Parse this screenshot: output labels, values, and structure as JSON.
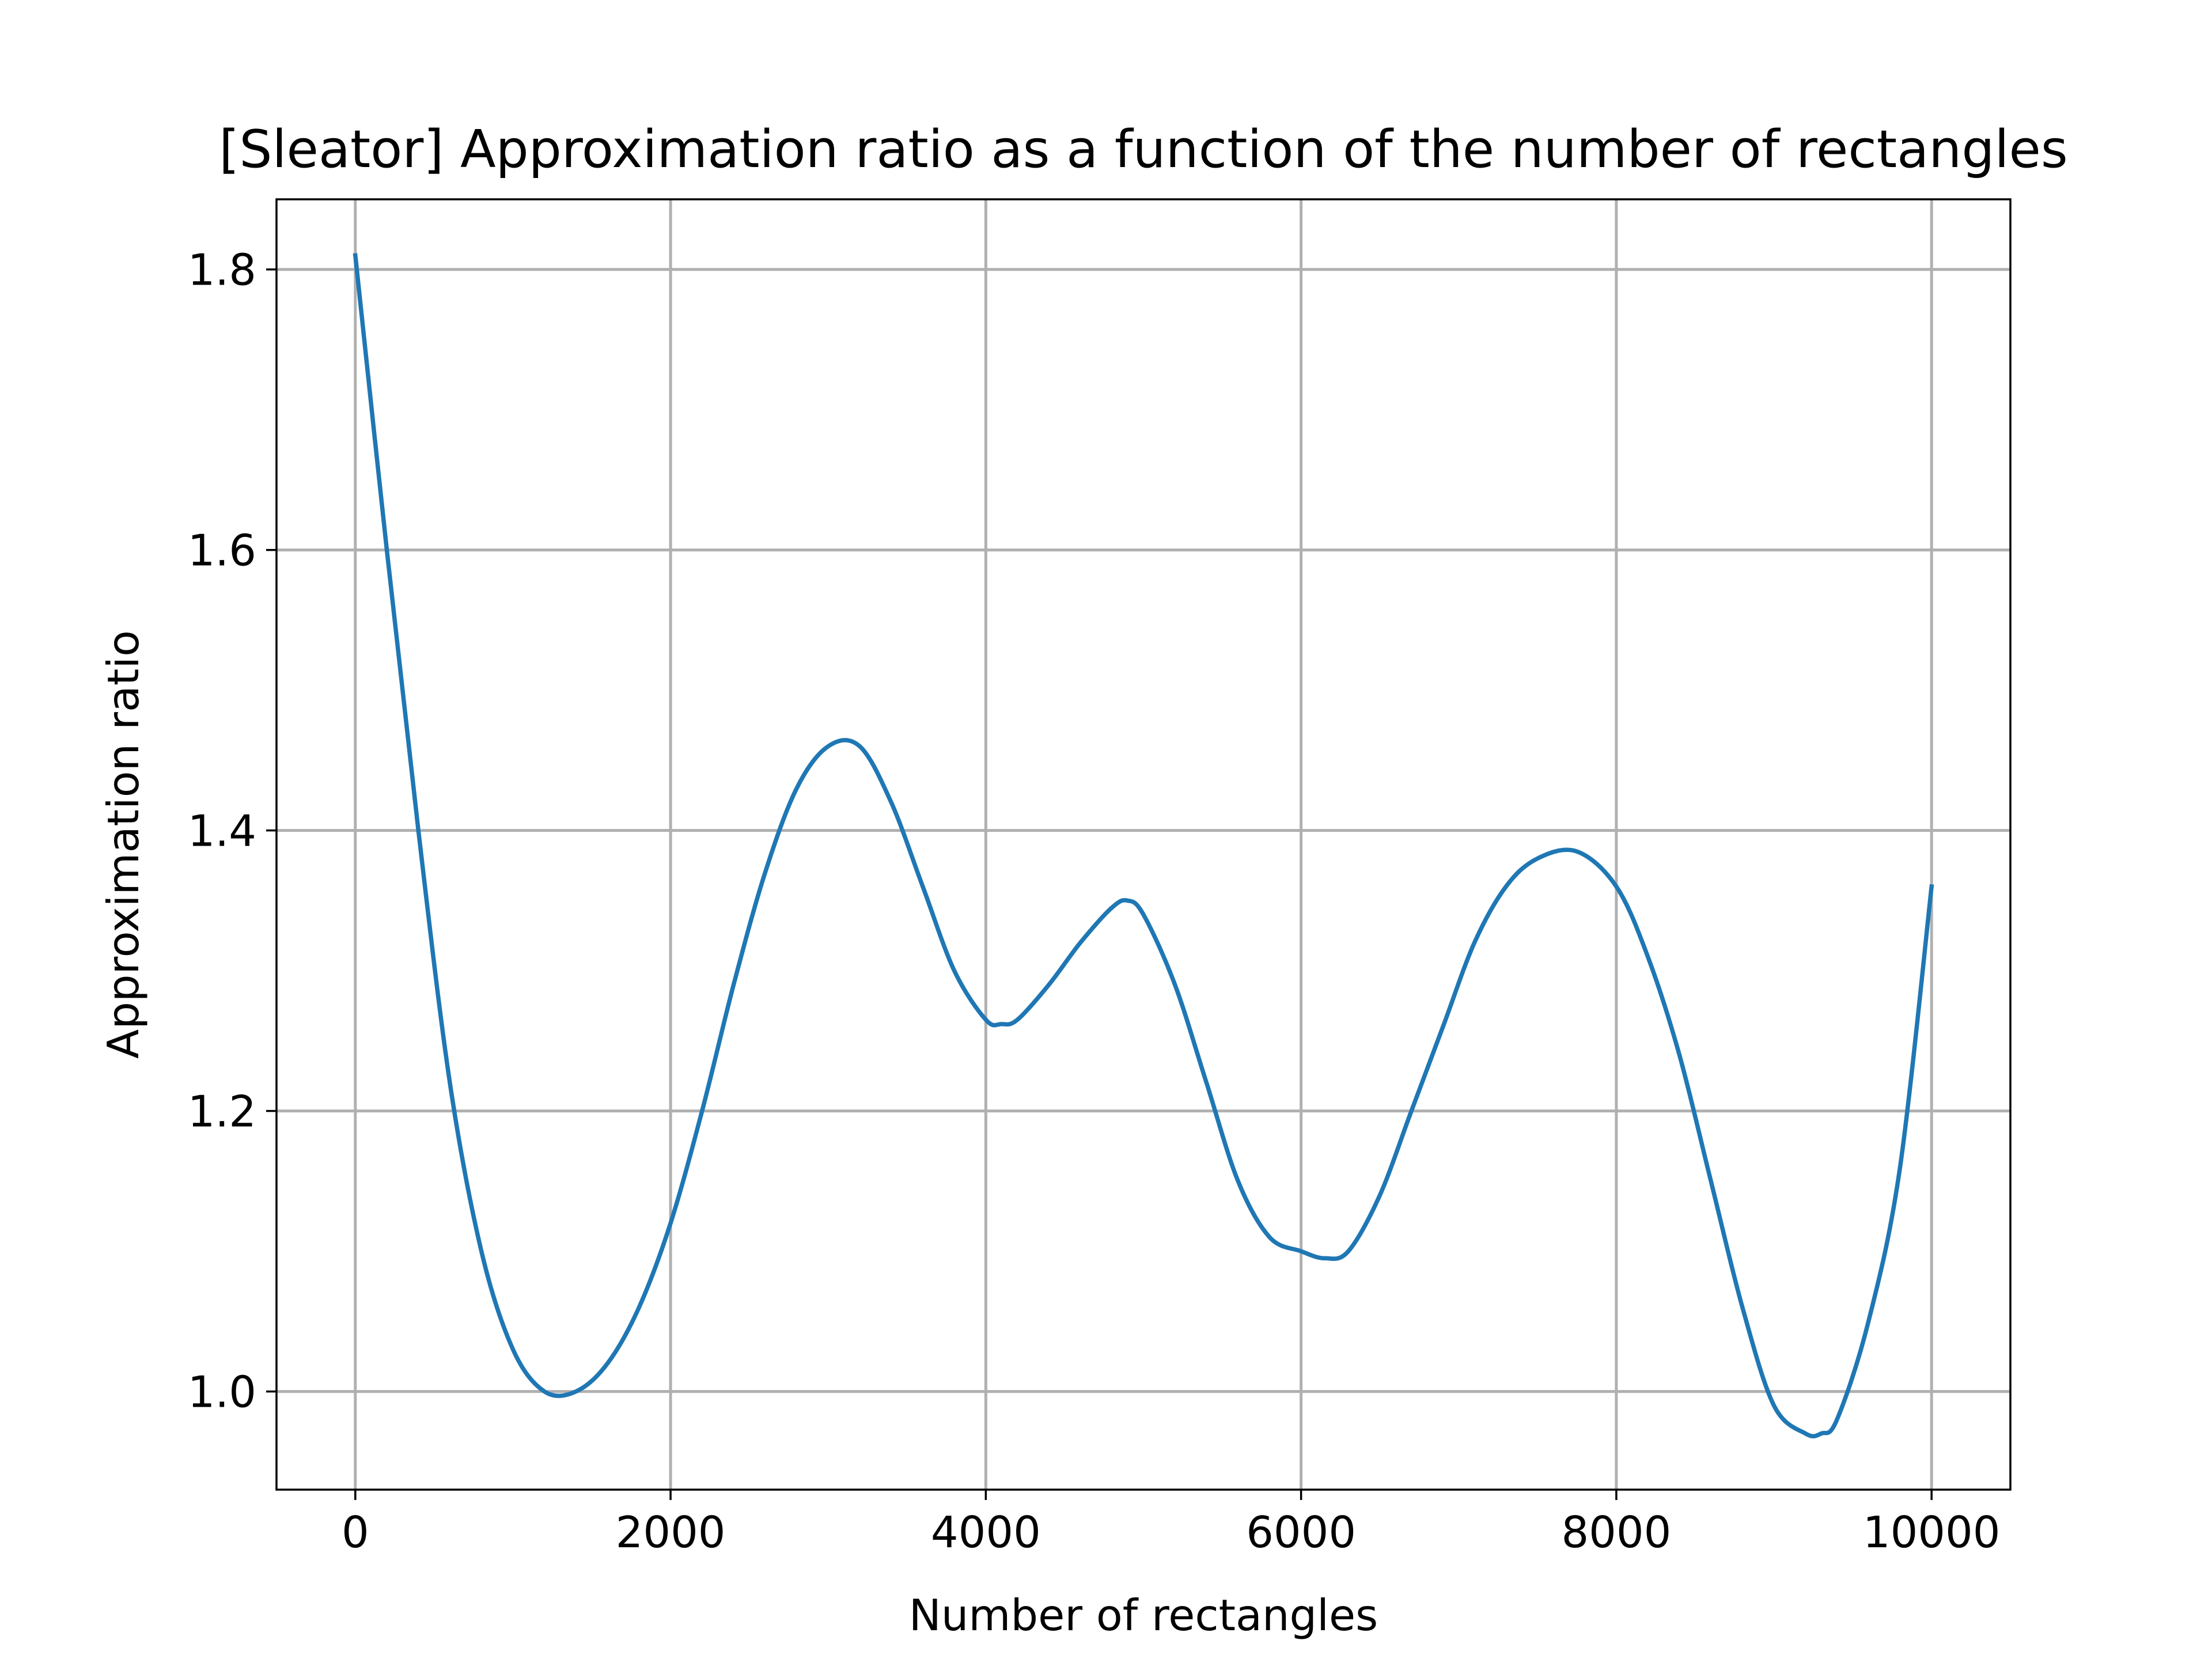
{
  "chart_data": {
    "type": "line",
    "title": "[Sleator] Approximation ratio as a function of the number of rectangles",
    "xlabel": "Number of rectangles",
    "ylabel": "Approximation ratio",
    "xlim": [
      -500,
      10500
    ],
    "ylim": [
      0.93,
      1.85
    ],
    "xticks": [
      0,
      2000,
      4000,
      6000,
      8000,
      10000
    ],
    "xtick_labels": [
      "0",
      "2000",
      "4000",
      "6000",
      "8000",
      "10000"
    ],
    "yticks": [
      1.0,
      1.2,
      1.4,
      1.6,
      1.8
    ],
    "ytick_labels": [
      "1.0",
      "1.2",
      "1.4",
      "1.6",
      "1.8"
    ],
    "grid": true,
    "series": [
      {
        "color": "#1f77b4",
        "x": [
          0,
          200,
          400,
          600,
          800,
          1000,
          1200,
          1400,
          1600,
          1800,
          2000,
          2200,
          2400,
          2600,
          2800,
          3000,
          3200,
          3400,
          3600,
          3800,
          4000,
          4100,
          4200,
          4400,
          4600,
          4800,
          4900,
          5000,
          5200,
          5400,
          5600,
          5800,
          6000,
          6150,
          6300,
          6500,
          6700,
          6900,
          7100,
          7300,
          7500,
          7750,
          8000,
          8200,
          8400,
          8600,
          8800,
          9000,
          9200,
          9300,
          9400,
          9600,
          9800,
          10000
        ],
        "y": [
          1.81,
          1.6,
          1.4,
          1.22,
          1.1,
          1.03,
          1.0,
          1.0,
          1.02,
          1.06,
          1.12,
          1.2,
          1.29,
          1.37,
          1.43,
          1.46,
          1.46,
          1.42,
          1.36,
          1.3,
          1.265,
          1.262,
          1.265,
          1.29,
          1.32,
          1.345,
          1.35,
          1.34,
          1.29,
          1.22,
          1.15,
          1.11,
          1.1,
          1.095,
          1.1,
          1.14,
          1.2,
          1.26,
          1.32,
          1.36,
          1.38,
          1.385,
          1.36,
          1.31,
          1.24,
          1.15,
          1.06,
          0.99,
          0.97,
          0.97,
          0.98,
          1.05,
          1.16,
          1.36
        ]
      }
    ]
  }
}
